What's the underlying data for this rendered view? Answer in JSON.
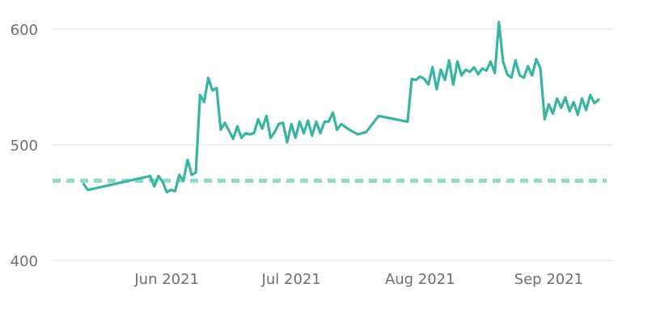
{
  "chart_data": {
    "type": "line",
    "title": "",
    "xlabel": "",
    "ylabel": "",
    "ylim": [
      400,
      610
    ],
    "xlim": [
      "2021-05-08",
      "2021-09-13"
    ],
    "yticks": [
      {
        "value": 400,
        "label": "400"
      },
      {
        "value": 500,
        "label": "500"
      },
      {
        "value": 600,
        "label": "600"
      }
    ],
    "xticks": [
      {
        "date": "2021-06-01",
        "label": "Jun 2021"
      },
      {
        "date": "2021-07-01",
        "label": "Jul 2021"
      },
      {
        "date": "2021-08-01",
        "label": "Aug 2021"
      },
      {
        "date": "2021-09-01",
        "label": "Sep 2021"
      }
    ],
    "grid": true,
    "reference_line": {
      "value": 469,
      "style": "dashed",
      "color": "#8fd8cf"
    },
    "series": [
      {
        "color": "#38b5a2",
        "points": [
          [
            "2021-05-12",
            466
          ],
          [
            "2021-05-13",
            461
          ],
          [
            "2021-05-28",
            473
          ],
          [
            "2021-05-29",
            464
          ],
          [
            "2021-05-30",
            473
          ],
          [
            "2021-05-31",
            468
          ],
          [
            "2021-06-01",
            459
          ],
          [
            "2021-06-02",
            461
          ],
          [
            "2021-06-03",
            460
          ],
          [
            "2021-06-04",
            474
          ],
          [
            "2021-06-05",
            469
          ],
          [
            "2021-06-06",
            487
          ],
          [
            "2021-06-07",
            474
          ],
          [
            "2021-06-08",
            476
          ],
          [
            "2021-06-09",
            543
          ],
          [
            "2021-06-10",
            537
          ],
          [
            "2021-06-11",
            558
          ],
          [
            "2021-06-12",
            547
          ],
          [
            "2021-06-13",
            549
          ],
          [
            "2021-06-14",
            513
          ],
          [
            "2021-06-15",
            519
          ],
          [
            "2021-06-16",
            512
          ],
          [
            "2021-06-17",
            505
          ],
          [
            "2021-06-18",
            516
          ],
          [
            "2021-06-19",
            506
          ],
          [
            "2021-06-20",
            510
          ],
          [
            "2021-06-21",
            509
          ],
          [
            "2021-06-22",
            510
          ],
          [
            "2021-06-23",
            522
          ],
          [
            "2021-06-24",
            514
          ],
          [
            "2021-06-25",
            525
          ],
          [
            "2021-06-26",
            506
          ],
          [
            "2021-06-27",
            511
          ],
          [
            "2021-06-28",
            518
          ],
          [
            "2021-06-29",
            519
          ],
          [
            "2021-06-30",
            502
          ],
          [
            "2021-07-01",
            518
          ],
          [
            "2021-07-02",
            506
          ],
          [
            "2021-07-03",
            520
          ],
          [
            "2021-07-04",
            510
          ],
          [
            "2021-07-05",
            521
          ],
          [
            "2021-07-06",
            508
          ],
          [
            "2021-07-07",
            520
          ],
          [
            "2021-07-08",
            510
          ],
          [
            "2021-07-09",
            520
          ],
          [
            "2021-07-10",
            520
          ],
          [
            "2021-07-11",
            528
          ],
          [
            "2021-07-12",
            513
          ],
          [
            "2021-07-13",
            518
          ],
          [
            "2021-07-15",
            513
          ],
          [
            "2021-07-17",
            509
          ],
          [
            "2021-07-19",
            511
          ],
          [
            "2021-07-22",
            525
          ],
          [
            "2021-07-29",
            520
          ],
          [
            "2021-07-30",
            557
          ],
          [
            "2021-07-31",
            556
          ],
          [
            "2021-08-01",
            559
          ],
          [
            "2021-08-02",
            557
          ],
          [
            "2021-08-03",
            552
          ],
          [
            "2021-08-04",
            567
          ],
          [
            "2021-08-05",
            548
          ],
          [
            "2021-08-06",
            565
          ],
          [
            "2021-08-07",
            556
          ],
          [
            "2021-08-08",
            573
          ],
          [
            "2021-08-09",
            552
          ],
          [
            "2021-08-10",
            572
          ],
          [
            "2021-08-11",
            560
          ],
          [
            "2021-08-12",
            565
          ],
          [
            "2021-08-13",
            563
          ],
          [
            "2021-08-14",
            567
          ],
          [
            "2021-08-15",
            561
          ],
          [
            "2021-08-16",
            566
          ],
          [
            "2021-08-17",
            564
          ],
          [
            "2021-08-18",
            572
          ],
          [
            "2021-08-19",
            562
          ],
          [
            "2021-08-20",
            606
          ],
          [
            "2021-08-21",
            572
          ],
          [
            "2021-08-22",
            561
          ],
          [
            "2021-08-23",
            558
          ],
          [
            "2021-08-24",
            573
          ],
          [
            "2021-08-25",
            560
          ],
          [
            "2021-08-26",
            558
          ],
          [
            "2021-08-27",
            568
          ],
          [
            "2021-08-28",
            560
          ],
          [
            "2021-08-29",
            574
          ],
          [
            "2021-08-30",
            566
          ],
          [
            "2021-08-31",
            522
          ],
          [
            "2021-09-01",
            535
          ],
          [
            "2021-09-02",
            527
          ],
          [
            "2021-09-03",
            540
          ],
          [
            "2021-09-04",
            532
          ],
          [
            "2021-09-05",
            541
          ],
          [
            "2021-09-06",
            529
          ],
          [
            "2021-09-07",
            537
          ],
          [
            "2021-09-08",
            526
          ],
          [
            "2021-09-09",
            540
          ],
          [
            "2021-09-10",
            530
          ],
          [
            "2021-09-11",
            543
          ],
          [
            "2021-09-12",
            536
          ],
          [
            "2021-09-13",
            539
          ]
        ]
      }
    ]
  }
}
